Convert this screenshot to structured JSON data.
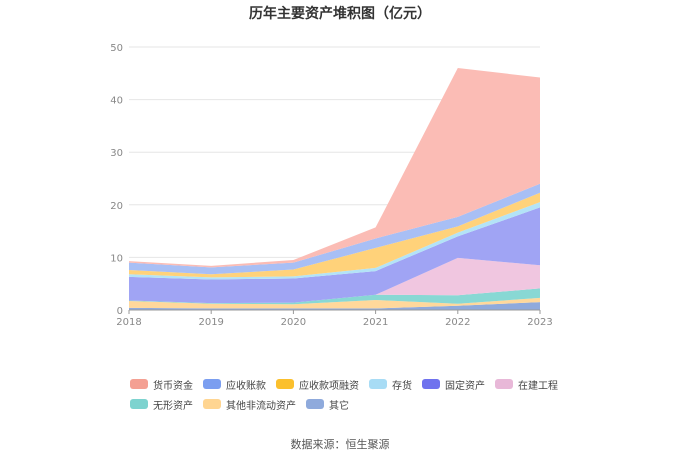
{
  "chart_data": {
    "type": "area",
    "stacked": true,
    "title": "历年主要资产堆积图（亿元）",
    "categories": [
      "2018",
      "2019",
      "2020",
      "2021",
      "2022",
      "2023"
    ],
    "ylim": [
      0,
      50
    ],
    "yticks": [
      0,
      10,
      20,
      30,
      40,
      50
    ],
    "grid": true,
    "legend_position": "bottom",
    "series": [
      {
        "name": "其它",
        "color": "#8faadc",
        "values": [
          0.4,
          0.3,
          0.3,
          0.3,
          0.8,
          1.5
        ]
      },
      {
        "name": "其他非流动资产",
        "color": "#ffd89b",
        "values": [
          1.3,
          0.9,
          0.8,
          1.6,
          0.4,
          0.8
        ]
      },
      {
        "name": "无形资产",
        "color": "#88d8d4",
        "values": [
          0.1,
          0.1,
          0.3,
          1.0,
          1.6,
          1.8
        ]
      },
      {
        "name": "在建工程",
        "color": "#f0c6e0",
        "values": [
          0.0,
          0.0,
          0.0,
          0.0,
          7.1,
          4.4
        ]
      },
      {
        "name": "固定资产",
        "color": "#a0a4f4",
        "values": [
          4.5,
          4.5,
          4.6,
          4.5,
          4.1,
          11.0
        ]
      },
      {
        "name": "存货",
        "color": "#b3e3f7",
        "values": [
          0.5,
          0.4,
          0.4,
          0.6,
          0.7,
          1.0
        ]
      },
      {
        "name": "应收款项融资",
        "color": "#ffd27a",
        "values": [
          0.8,
          0.6,
          1.3,
          3.8,
          1.2,
          1.8
        ]
      },
      {
        "name": "应收账款",
        "color": "#a8bff5",
        "values": [
          1.4,
          1.3,
          1.3,
          1.8,
          1.8,
          1.7
        ]
      },
      {
        "name": "货币资金",
        "color": "#fbbcb5",
        "values": [
          0.3,
          0.3,
          0.5,
          2.1,
          28.3,
          20.2
        ]
      }
    ]
  },
  "legend": [
    {
      "label": "货币资金",
      "color": "#f4a093"
    },
    {
      "label": "应收账款",
      "color": "#7b9ef0"
    },
    {
      "label": "应收款项融资",
      "color": "#fbc02d"
    },
    {
      "label": "存货",
      "color": "#a8dcf5"
    },
    {
      "label": "固定资产",
      "color": "#6f72ee"
    },
    {
      "label": "在建工程",
      "color": "#e8b8d8"
    },
    {
      "label": "无形资产",
      "color": "#7dd3cf"
    },
    {
      "label": "其他非流动资产",
      "color": "#ffd591"
    },
    {
      "label": "其它",
      "color": "#8faadc"
    }
  ],
  "source": "数据来源：恒生聚源"
}
